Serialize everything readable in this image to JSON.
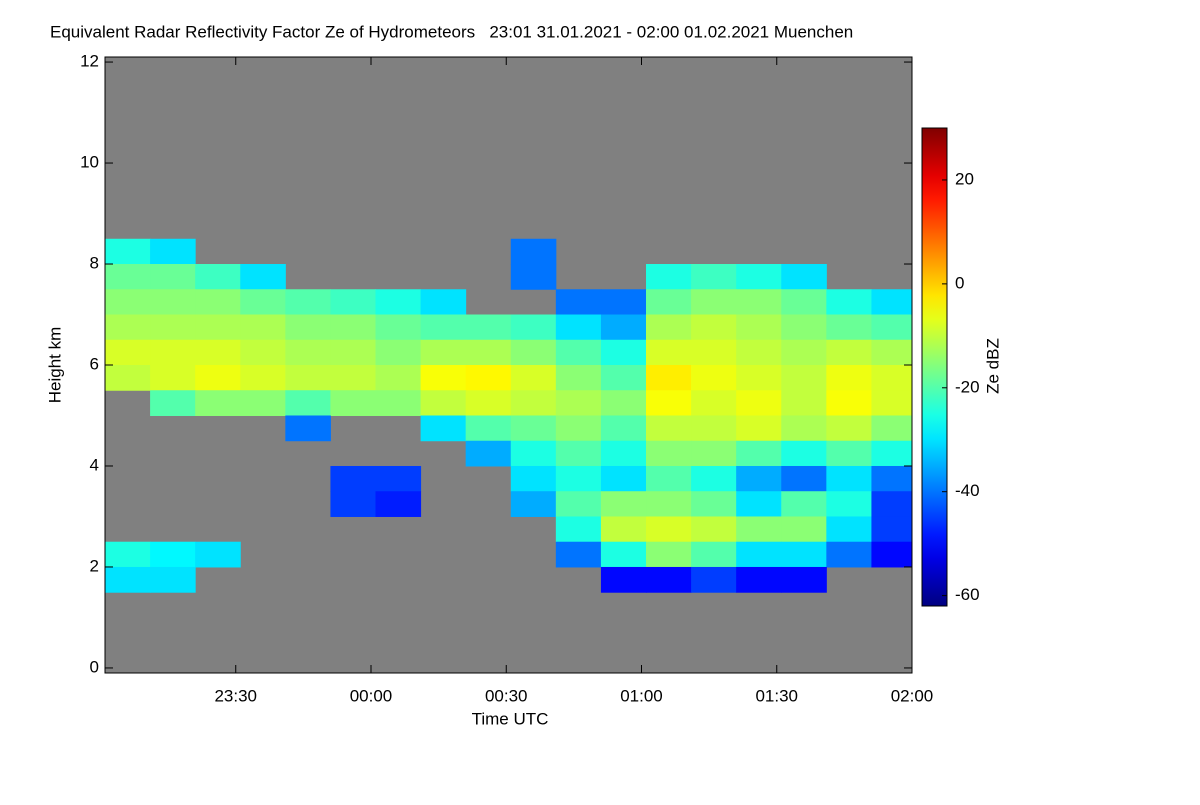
{
  "chart_data": {
    "type": "heatmap",
    "title": "Equivalent Radar Reflectivity Factor Ze of Hydrometeors   23:01 31.01.2021 - 02:00 01.02.2021 Muenchen",
    "x_label": "Time UTC",
    "y_label": "Height km",
    "colorbar_label": "Ze dBZ",
    "colormap": "jet",
    "background": "#808080",
    "xlim": [
      "23:01",
      "02:00"
    ],
    "xticks": [
      "23:30",
      "00:00",
      "00:30",
      "01:00",
      "01:30",
      "02:00"
    ],
    "ylim": [
      -0.1,
      12.1
    ],
    "yticks": [
      0,
      2,
      4,
      6,
      8,
      10,
      12
    ],
    "y_step": 0.5,
    "zlim": [
      -62,
      30
    ],
    "zticks": [
      -60,
      -40,
      -20,
      0,
      20
    ],
    "x": [
      "23:01",
      "23:11",
      "23:21",
      "23:31",
      "23:41",
      "23:51",
      "00:01",
      "00:11",
      "00:21",
      "00:31",
      "00:41",
      "00:51",
      "01:01",
      "01:11",
      "01:21",
      "01:31",
      "01:41",
      "01:51"
    ],
    "y": [
      8.0,
      7.5,
      7.0,
      6.5,
      6.0,
      5.5,
      5.0,
      4.5,
      4.0,
      3.5,
      3.0,
      2.5,
      2.0,
      1.5
    ],
    "values": [
      [
        -25,
        -30,
        null,
        null,
        null,
        null,
        null,
        null,
        null,
        -40,
        null,
        null,
        null,
        null,
        null,
        null,
        null,
        null
      ],
      [
        -18,
        -18,
        -22,
        -30,
        null,
        null,
        null,
        null,
        null,
        -40,
        null,
        null,
        -25,
        -22,
        -25,
        -30,
        null,
        null
      ],
      [
        -15,
        -15,
        -15,
        -18,
        -20,
        -22,
        -25,
        -30,
        null,
        null,
        -40,
        -40,
        -18,
        -15,
        -15,
        -18,
        -25,
        -30
      ],
      [
        -12,
        -12,
        -12,
        -12,
        -15,
        -15,
        -18,
        -20,
        -20,
        -22,
        -30,
        -35,
        -12,
        -10,
        -12,
        -15,
        -18,
        -20
      ],
      [
        -8,
        -8,
        -8,
        -10,
        -12,
        -12,
        -15,
        -12,
        -12,
        -15,
        -20,
        -25,
        -8,
        -8,
        -10,
        -12,
        -10,
        -12
      ],
      [
        -10,
        -8,
        -6,
        -8,
        -10,
        -10,
        -12,
        -5,
        -4,
        -8,
        -15,
        -20,
        -3,
        -6,
        -8,
        -10,
        -6,
        -8
      ],
      [
        null,
        -20,
        -15,
        -15,
        -20,
        -15,
        -15,
        -10,
        -8,
        -10,
        -12,
        -15,
        -5,
        -8,
        -6,
        -10,
        -5,
        -8
      ],
      [
        null,
        null,
        null,
        null,
        -40,
        null,
        null,
        -30,
        -20,
        -18,
        -15,
        -20,
        -10,
        -10,
        -8,
        -12,
        -10,
        -15
      ],
      [
        null,
        null,
        null,
        null,
        null,
        null,
        null,
        null,
        -35,
        -25,
        -20,
        -25,
        -15,
        -15,
        -20,
        -25,
        -20,
        -25
      ],
      [
        null,
        null,
        null,
        null,
        null,
        -45,
        -45,
        null,
        null,
        -30,
        -25,
        -30,
        -20,
        -25,
        -35,
        -40,
        -30,
        -40
      ],
      [
        null,
        null,
        null,
        null,
        null,
        -45,
        -48,
        null,
        null,
        -35,
        -20,
        -15,
        -15,
        -18,
        -30,
        -20,
        -25,
        -45
      ],
      [
        null,
        null,
        null,
        null,
        null,
        null,
        null,
        null,
        null,
        null,
        -25,
        -10,
        -8,
        -10,
        -15,
        -15,
        -30,
        -45
      ],
      [
        -25,
        -28,
        -30,
        null,
        null,
        null,
        null,
        null,
        null,
        null,
        -40,
        -25,
        -15,
        -20,
        -30,
        -30,
        -40,
        -50
      ],
      [
        -30,
        -30,
        null,
        null,
        null,
        null,
        null,
        null,
        null,
        null,
        null,
        -50,
        -50,
        -45,
        -50,
        -50,
        null,
        null
      ]
    ]
  }
}
